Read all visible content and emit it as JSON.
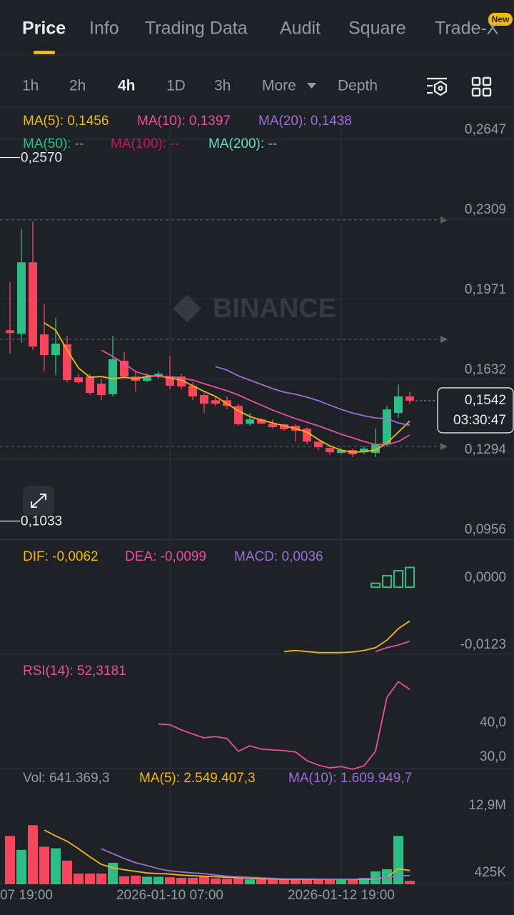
{
  "tabs": [
    "Price",
    "Info",
    "Trading Data",
    "Audit",
    "Square",
    "Trade-X"
  ],
  "tab_badge": "New",
  "intervals": [
    "1h",
    "2h",
    "4h",
    "1D",
    "3h",
    "More",
    "Depth"
  ],
  "chart_data": [
    {
      "type": "candlestick",
      "watermark": "BINANCE",
      "grid": true,
      "up_color": "#2ebd85",
      "down_color": "#f6465d",
      "categories": [
        null,
        null,
        null,
        null,
        null,
        null,
        null,
        null,
        null,
        null,
        null,
        null,
        null,
        null,
        "2026-01-10 07:00",
        null,
        null,
        null,
        null,
        null,
        null,
        null,
        null,
        null,
        null,
        null,
        null,
        null,
        null,
        "2026-01-12 19:00",
        null,
        null,
        null,
        null,
        null,
        null
      ],
      "edge_label": "07 19:00",
      "ylim": [
        0.0953,
        0.2783
      ],
      "yticks": [
        {
          "value": 0.2647,
          "label": "0,2647"
        },
        {
          "value": 0.2309,
          "label": "0,2309"
        },
        {
          "value": 0.1971,
          "label": "0,1971"
        },
        {
          "value": 0.1632,
          "label": "0,1632"
        },
        {
          "value": 0.1294,
          "label": "0,1294"
        },
        {
          "value": 0.0956,
          "label": "0,0956"
        }
      ],
      "open": [
        0.184,
        0.1825,
        0.2127,
        0.1822,
        0.1735,
        0.178,
        0.1641,
        0.1644,
        0.1614,
        0.1569,
        0.1711,
        0.1644,
        0.1626,
        0.1644,
        0.1644,
        0.1644,
        0.1605,
        0.1566,
        0.1544,
        0.1544,
        0.152,
        0.1445,
        0.1463,
        0.1445,
        0.1442,
        0.1436,
        0.1424,
        0.1369,
        0.1342,
        0.1321,
        0.1333,
        0.1324,
        0.1321,
        0.1357,
        0.149,
        0.156
      ],
      "high": [
        0.2043,
        0.2269,
        0.2299,
        0.1952,
        0.1892,
        0.1816,
        0.1656,
        0.1656,
        0.1635,
        0.1816,
        0.1747,
        0.1665,
        0.1656,
        0.1665,
        0.1732,
        0.1656,
        0.162,
        0.1575,
        0.156,
        0.156,
        0.1529,
        0.149,
        0.1469,
        0.1463,
        0.1445,
        0.1442,
        0.143,
        0.1369,
        0.1348,
        0.1339,
        0.1339,
        0.1348,
        0.1424,
        0.152,
        0.1611,
        0.1581
      ],
      "low": [
        0.1741,
        0.1786,
        0.1756,
        0.1665,
        0.165,
        0.162,
        0.1614,
        0.1566,
        0.1544,
        0.156,
        0.1635,
        0.1581,
        0.162,
        0.1635,
        0.159,
        0.159,
        0.1544,
        0.149,
        0.152,
        0.1505,
        0.1436,
        0.1436,
        0.1442,
        0.1424,
        0.1415,
        0.1369,
        0.1357,
        0.1333,
        0.1315,
        0.1315,
        0.1303,
        0.1315,
        0.1303,
        0.1348,
        0.1469,
        0.1529
      ],
      "close": [
        0.1828,
        0.2127,
        0.1771,
        0.1735,
        0.1783,
        0.1629,
        0.162,
        0.1575,
        0.1566,
        0.1717,
        0.1644,
        0.1626,
        0.1641,
        0.1656,
        0.1605,
        0.1602,
        0.156,
        0.1529,
        0.1529,
        0.152,
        0.1442,
        0.1463,
        0.1445,
        0.143,
        0.1421,
        0.1415,
        0.1369,
        0.1345,
        0.1324,
        0.1333,
        0.1315,
        0.1339,
        0.1357,
        0.1505,
        0.156,
        0.1542
      ],
      "series": [
        {
          "name": "MA(5): 0,1456",
          "color": "#f0b90b",
          "values": [
            null,
            null,
            null,
            0.1871,
            0.184,
            0.1756,
            0.168,
            0.1641,
            0.1644,
            0.1635,
            0.1641,
            0.1635,
            0.1644,
            0.1647,
            0.1638,
            0.1629,
            0.1605,
            0.1581,
            0.156,
            0.1529,
            0.1499,
            0.1475,
            0.146,
            0.1448,
            0.1436,
            0.1424,
            0.1409,
            0.1378,
            0.1351,
            0.1333,
            0.1324,
            0.1327,
            0.1333,
            0.1363,
            0.1409,
            0.1456
          ]
        },
        {
          "name": "MA(10): 0,1397",
          "color": "#e84fa0",
          "values": [
            null,
            null,
            null,
            null,
            null,
            null,
            null,
            null,
            0.1756,
            0.1729,
            0.1699,
            0.1665,
            0.165,
            0.1644,
            0.1644,
            0.1638,
            0.1629,
            0.1614,
            0.1599,
            0.1584,
            0.1566,
            0.1544,
            0.1523,
            0.1502,
            0.1484,
            0.1466,
            0.1451,
            0.1436,
            0.1418,
            0.14,
            0.1385,
            0.1369,
            0.1357,
            0.1357,
            0.1369,
            0.1397
          ]
        },
        {
          "name": "MA(20): 0,1438",
          "color": "#9b6fd6",
          "values": [
            null,
            null,
            null,
            null,
            null,
            null,
            null,
            null,
            null,
            null,
            null,
            null,
            null,
            null,
            null,
            null,
            null,
            null,
            0.1686,
            0.1671,
            0.1647,
            0.1629,
            0.1611,
            0.1593,
            0.1578,
            0.1569,
            0.1557,
            0.1542,
            0.1523,
            0.1505,
            0.149,
            0.1478,
            0.1469,
            0.1466,
            0.1448,
            0.1438
          ]
        },
        {
          "name": "MA(50): --",
          "color": "#2ebd85"
        },
        {
          "name": "MA(100): --",
          "color": "#c2185b"
        },
        {
          "name": "MA(200): --",
          "color": "#70d6bf"
        }
      ],
      "markers": [
        {
          "value": 0.257,
          "label": "0,2570"
        },
        {
          "value": 0.1033,
          "label": "0,1033"
        }
      ],
      "last_price": {
        "value": 0.1542,
        "label": "0,1542"
      },
      "countdown": "03:30:47"
    },
    {
      "type": "bar",
      "grid": false,
      "ylim": [
        -0.0123,
        0.0085
      ],
      "yticks": [
        {
          "value": 0,
          "label": "0,0000"
        },
        {
          "value": -0.0123,
          "label": "-0,0123"
        }
      ],
      "series": [
        {
          "name": "DIF: -0,0062",
          "color": "#f0b90b",
          "style": "line",
          "values": [
            null,
            null,
            null,
            null,
            null,
            null,
            null,
            null,
            null,
            null,
            null,
            null,
            null,
            null,
            null,
            null,
            null,
            null,
            null,
            null,
            null,
            null,
            null,
            null,
            -0.0118,
            -0.0116,
            -0.0118,
            -0.012,
            -0.012,
            -0.012,
            -0.0119,
            -0.0116,
            -0.0111,
            -0.0097,
            -0.0076,
            -0.0062
          ]
        },
        {
          "name": "DEA: -0,0099",
          "color": "#e84fa0",
          "style": "line",
          "values": [
            null,
            null,
            null,
            null,
            null,
            null,
            null,
            null,
            null,
            null,
            null,
            null,
            null,
            null,
            null,
            null,
            null,
            null,
            null,
            null,
            null,
            null,
            null,
            null,
            null,
            null,
            null,
            null,
            null,
            null,
            null,
            null,
            -0.0118,
            -0.0111,
            -0.0106,
            -0.0099
          ]
        },
        {
          "name": "MACD: 0,0036",
          "color": "#9b6fd6",
          "style": "bar",
          "bar_color": "#2ebd85",
          "values": [
            null,
            null,
            null,
            null,
            null,
            null,
            null,
            null,
            null,
            null,
            null,
            null,
            null,
            null,
            null,
            null,
            null,
            null,
            null,
            null,
            null,
            null,
            null,
            null,
            null,
            null,
            null,
            null,
            null,
            null,
            null,
            null,
            0.0007,
            0.0021,
            0.003,
            0.0036
          ]
        }
      ]
    },
    {
      "type": "line",
      "grid": false,
      "ylim": [
        29.4,
        62.3
      ],
      "yticks": [
        {
          "value": 40,
          "label": "40,0"
        },
        {
          "value": 30,
          "label": "30,0"
        }
      ],
      "series": [
        {
          "name": "RSI(14): 52,3181",
          "color": "#e84fa0",
          "style": "line",
          "values": [
            null,
            null,
            null,
            null,
            null,
            null,
            null,
            null,
            null,
            null,
            null,
            null,
            null,
            42.3,
            42.1,
            40.6,
            39.4,
            38.3,
            38.7,
            38.1,
            34.4,
            36.0,
            35.0,
            34.8,
            34.6,
            34.2,
            31.7,
            30.4,
            29.6,
            30.0,
            29.2,
            30.2,
            34.4,
            50.0,
            54.6,
            52.3181
          ]
        }
      ]
    },
    {
      "type": "bar",
      "grid": false,
      "ylim": [
        0,
        21400000
      ],
      "yticks": [
        {
          "value": 12900000,
          "label": "12,9M"
        },
        {
          "value": 425000,
          "label": "425K"
        }
      ],
      "series": [
        {
          "name": "Vol: 641.369,3",
          "color": "#929aa5",
          "style": "bar",
          "values": [
            9000000,
            6400000,
            11000000,
            7000000,
            6700000,
            4400000,
            2000000,
            2000000,
            2000000,
            4000000,
            1500000,
            1600000,
            1400000,
            1400000,
            1300000,
            1200000,
            1200000,
            1600000,
            1100000,
            1000000,
            1100000,
            900000,
            900000,
            900000,
            900000,
            900000,
            1000000,
            900000,
            900000,
            900000,
            900000,
            1200000,
            2400000,
            2800000,
            9000000,
            641369.3
          ]
        },
        {
          "name": "MA(5): 2.549.407,3",
          "color": "#f0b90b",
          "style": "line",
          "values": [
            null,
            null,
            null,
            10100000,
            9000000,
            8000000,
            6600000,
            5100000,
            3700000,
            3100000,
            2700000,
            2400000,
            2100000,
            2000000,
            1900000,
            1700000,
            1600000,
            1500000,
            1400000,
            1300000,
            1200000,
            1100000,
            1000000,
            1000000,
            900000,
            900000,
            900000,
            900000,
            900000,
            900000,
            900000,
            900000,
            1000000,
            1300000,
            2900000,
            2549407.3
          ]
        },
        {
          "name": "MA(10): 1.609.949,7",
          "color": "#9b6fd6",
          "style": "line",
          "values": [
            null,
            null,
            null,
            null,
            null,
            null,
            null,
            null,
            6600000,
            5700000,
            4800000,
            4000000,
            3500000,
            2900000,
            2500000,
            2300000,
            2100000,
            2000000,
            1700000,
            1500000,
            1400000,
            1300000,
            1200000,
            1100000,
            1000000,
            1000000,
            1000000,
            950000,
            950000,
            950000,
            950000,
            1000000,
            1100000,
            1300000,
            1600000,
            1609949.7
          ]
        }
      ]
    }
  ]
}
